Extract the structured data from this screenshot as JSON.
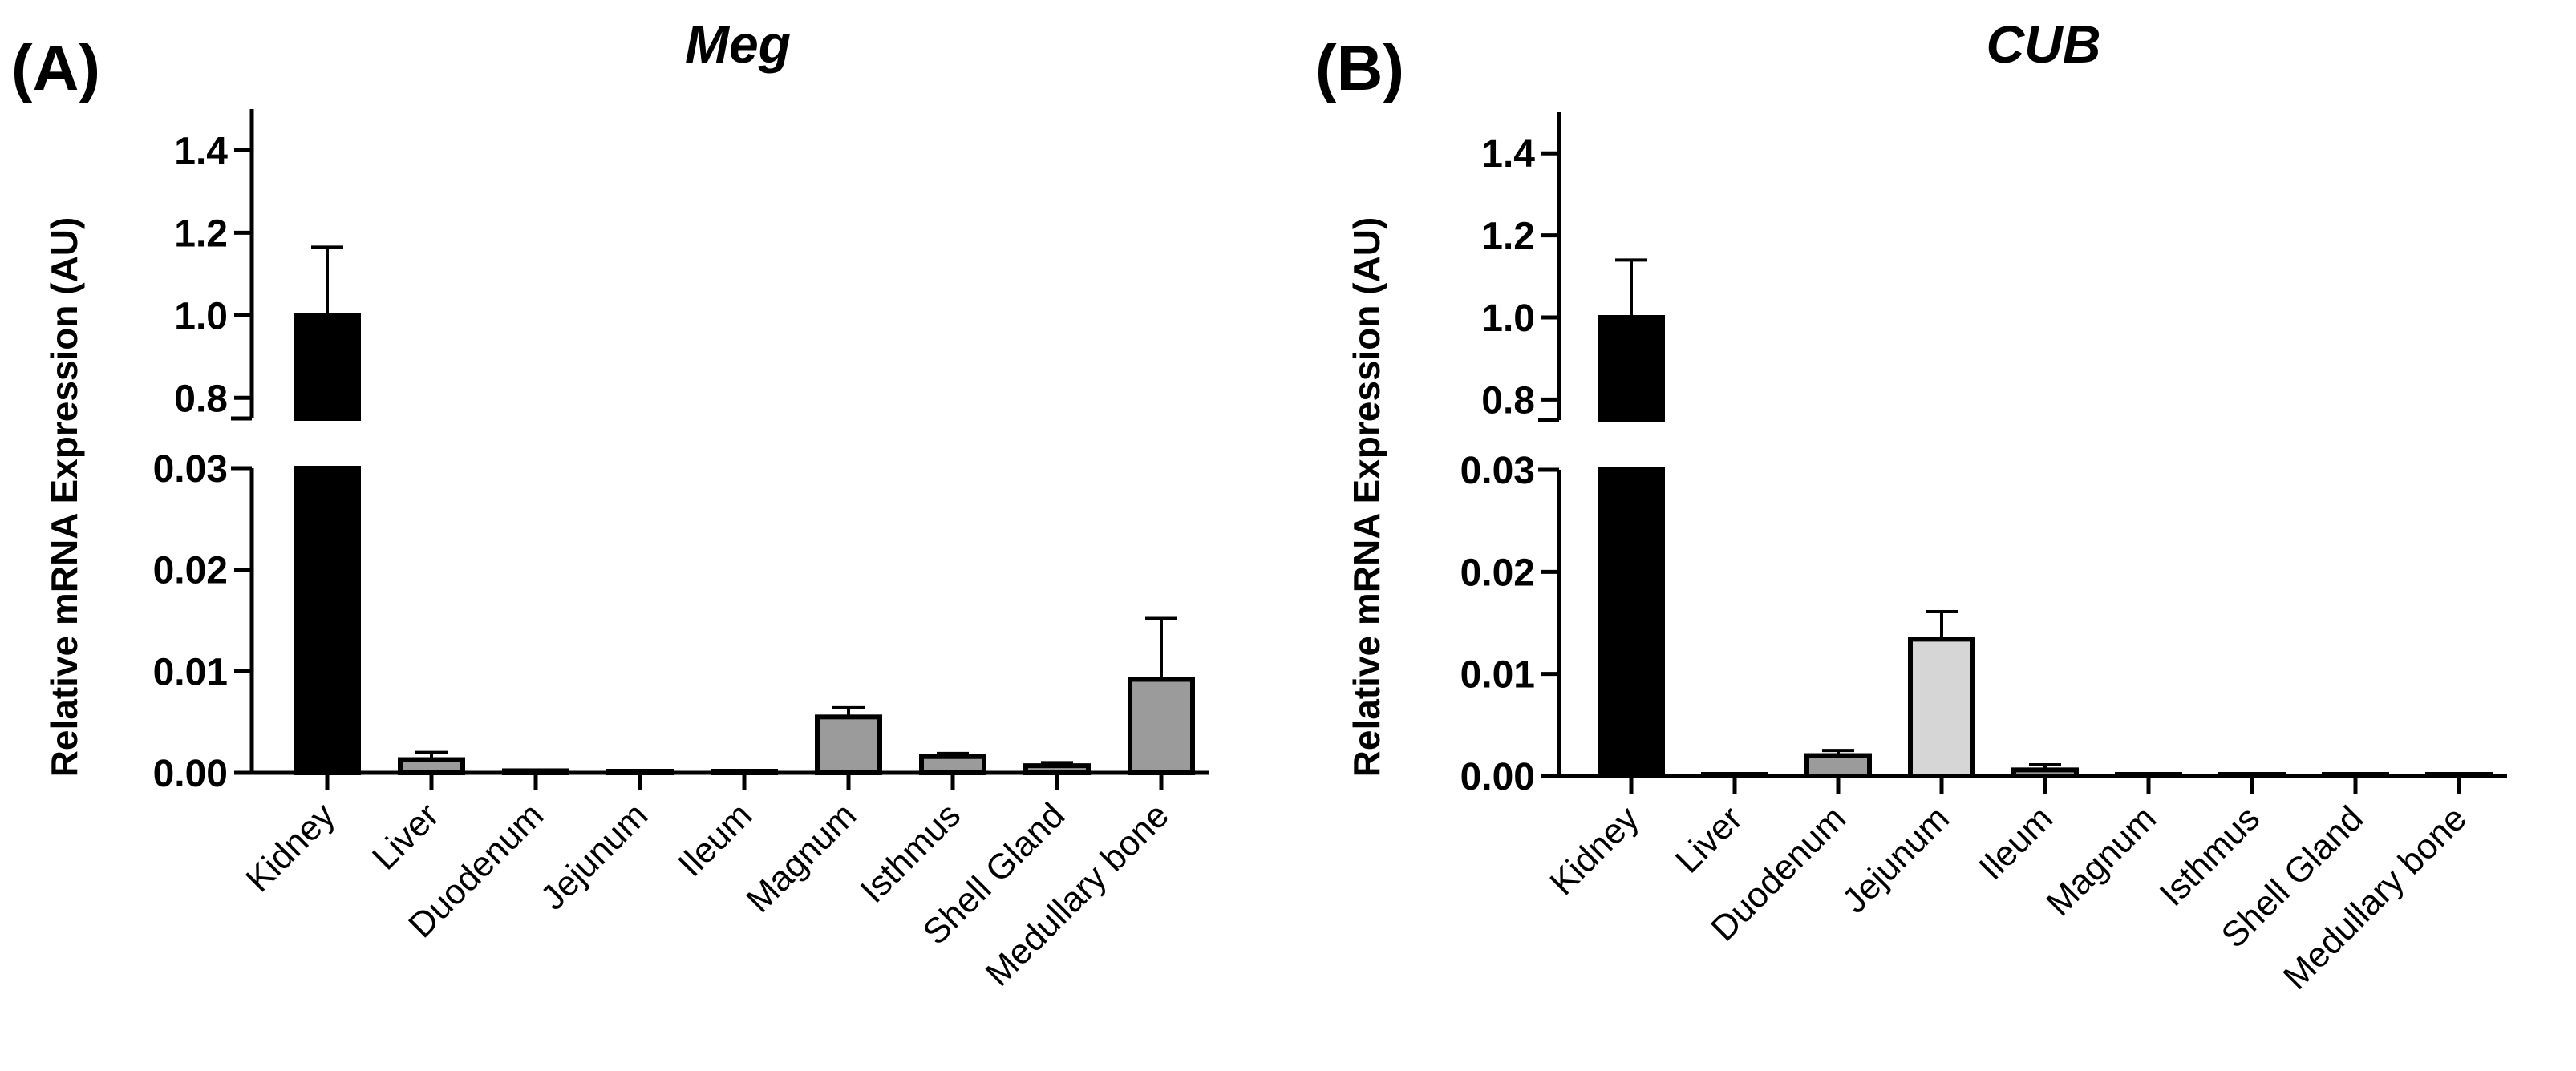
{
  "chart_data": [
    {
      "panel": "(A)",
      "type": "bar",
      "title": "Meg",
      "ylabel": "Relative mRNA Expression (AU)",
      "categories": [
        "Kidney",
        "Liver",
        "Duodenum",
        "Jejunum",
        "Ileum",
        "Magnum",
        "Isthmus",
        "Shell Gland",
        "Medullary bone"
      ],
      "values": [
        1.0,
        0.0013,
        0.0002,
        0.0,
        0.0,
        0.0055,
        0.0016,
        0.0007,
        0.0092
      ],
      "errors": [
        0.165,
        0.0007,
        0.0,
        0.0,
        0.0,
        0.0009,
        0.0003,
        0.0003,
        0.006
      ],
      "colors": [
        "#000000",
        "#9b9b9b",
        "#9b9b9b",
        "#9b9b9b",
        "#9b9b9b",
        "#9b9b9b",
        "#9b9b9b",
        "#9b9b9b",
        "#9b9b9b"
      ],
      "axis_break": true,
      "ylim_lower": [
        0,
        0.03
      ],
      "ylim_upper": [
        0.75,
        1.5
      ],
      "yticks_lower": [
        "0.00",
        "0.01",
        "0.02",
        "0.03"
      ],
      "yticks_upper": [
        "0.8",
        "1.0",
        "1.2",
        "1.4"
      ]
    },
    {
      "panel": "(B)",
      "type": "bar",
      "title": "CUB",
      "ylabel": "Relative mRNA Expression (AU)",
      "categories": [
        "Kidney",
        "Liver",
        "Duodenum",
        "Jejunum",
        "Ileum",
        "Magnum",
        "Isthmus",
        "Shell Gland",
        "Medullary bone"
      ],
      "values": [
        1.0,
        0.0,
        0.002,
        0.0134,
        0.0006,
        0.0,
        0.0,
        0.0,
        0.0001
      ],
      "errors": [
        0.14,
        0.0,
        0.0005,
        0.0027,
        0.0005,
        0.0,
        0.0,
        0.0,
        0.0
      ],
      "colors": [
        "#000000",
        "#9b9b9b",
        "#9b9b9b",
        "#d6d6d6",
        "#9b9b9b",
        "#9b9b9b",
        "#9b9b9b",
        "#9b9b9b",
        "#9b9b9b"
      ],
      "axis_break": true,
      "ylim_lower": [
        0,
        0.03
      ],
      "ylim_upper": [
        0.75,
        1.5
      ],
      "yticks_lower": [
        "0.00",
        "0.01",
        "0.02",
        "0.03"
      ],
      "yticks_upper": [
        "0.8",
        "1.0",
        "1.2",
        "1.4"
      ]
    }
  ]
}
